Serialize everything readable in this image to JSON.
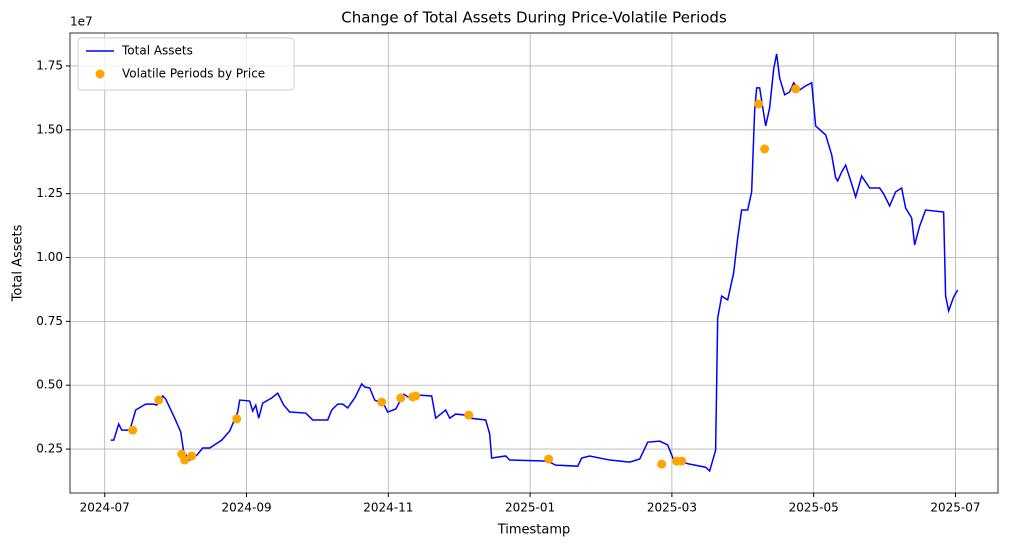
{
  "chart_data": {
    "type": "line",
    "title": "Change of Total Assets During Price-Volatile Periods",
    "x_label": "Timestamp",
    "y_label": "Total Assets",
    "y_offset_label": "1e7",
    "grid": true,
    "legend": "upper left",
    "xlim": [
      -0.49,
      12.6
    ],
    "xticks": [
      {
        "value": 0,
        "label": "2024-07"
      },
      {
        "value": 2,
        "label": "2024-09"
      },
      {
        "value": 4,
        "label": "2024-11"
      },
      {
        "value": 6,
        "label": "2025-01"
      },
      {
        "value": 8,
        "label": "2025-03"
      },
      {
        "value": 10,
        "label": "2025-05"
      },
      {
        "value": 12,
        "label": "2025-07"
      }
    ],
    "ylim": [
      0.078,
      1.879
    ],
    "yticks": [
      0.25,
      {
        "value": 0.5,
        "label": "0.50"
      },
      0.75,
      {
        "value": 1.0,
        "label": "1.00"
      },
      1.25,
      {
        "value": 1.5,
        "label": "1.50"
      },
      1.75
    ],
    "series": [
      {
        "name": "Total Assets",
        "type": "line",
        "color": "#0000ff",
        "x": [
          0.085,
          0.127,
          0.197,
          0.24,
          0.353,
          0.437,
          0.578,
          0.691,
          0.733,
          0.818,
          0.86,
          0.987,
          1.072,
          1.114,
          1.199,
          1.298,
          1.382,
          1.481,
          1.65,
          1.763,
          1.876,
          1.904,
          2.045,
          2.087,
          2.13,
          2.172,
          2.228,
          2.355,
          2.44,
          2.525,
          2.609,
          2.835,
          2.934,
          3.145,
          3.202,
          3.286,
          3.357,
          3.427,
          3.526,
          3.625,
          3.667,
          3.738,
          3.808,
          3.935,
          3.992,
          4.105,
          4.217,
          4.302,
          4.372,
          4.612,
          4.668,
          4.809,
          4.866,
          4.951,
          5.092,
          5.148,
          5.374,
          5.43,
          5.458,
          5.656,
          5.712,
          6.248,
          6.361,
          6.671,
          6.728,
          6.84,
          7.123,
          7.405,
          7.546,
          7.659,
          7.828,
          7.941,
          8.025,
          8.251,
          8.476,
          8.533,
          8.617,
          8.646,
          8.702,
          8.787,
          8.871,
          8.928,
          8.984,
          9.069,
          9.125,
          9.168,
          9.196,
          9.238,
          9.323,
          9.379,
          9.436,
          9.478,
          9.52,
          9.591,
          9.661,
          9.718,
          9.802,
          9.887,
          9.972,
          10.028,
          10.169,
          10.254,
          10.31,
          10.338,
          10.395,
          10.451,
          10.536,
          10.592,
          10.677,
          10.79,
          10.931,
          10.987,
          11.072,
          11.156,
          11.241,
          11.297,
          11.382,
          11.424,
          11.495,
          11.579,
          11.833,
          11.861,
          11.904,
          11.974,
          12.031
        ],
        "values": [
          0.285,
          0.285,
          0.348,
          0.324,
          0.324,
          0.403,
          0.426,
          0.426,
          0.422,
          0.458,
          0.446,
          0.371,
          0.317,
          0.238,
          0.207,
          0.226,
          0.254,
          0.254,
          0.285,
          0.321,
          0.395,
          0.442,
          0.438,
          0.399,
          0.422,
          0.371,
          0.43,
          0.45,
          0.469,
          0.422,
          0.395,
          0.391,
          0.364,
          0.364,
          0.403,
          0.426,
          0.426,
          0.411,
          0.45,
          0.505,
          0.493,
          0.489,
          0.442,
          0.426,
          0.395,
          0.407,
          0.465,
          0.45,
          0.462,
          0.458,
          0.371,
          0.403,
          0.371,
          0.387,
          0.383,
          0.371,
          0.364,
          0.309,
          0.215,
          0.223,
          0.207,
          0.203,
          0.187,
          0.183,
          0.215,
          0.223,
          0.207,
          0.199,
          0.211,
          0.277,
          0.281,
          0.266,
          0.207,
          0.191,
          0.179,
          0.164,
          0.246,
          0.763,
          0.849,
          0.834,
          0.939,
          1.076,
          1.186,
          1.186,
          1.257,
          1.578,
          1.664,
          1.664,
          1.515,
          1.586,
          1.739,
          1.797,
          1.703,
          1.637,
          1.648,
          1.684,
          1.656,
          1.672,
          1.684,
          1.515,
          1.48,
          1.402,
          1.312,
          1.3,
          1.335,
          1.362,
          1.288,
          1.237,
          1.319,
          1.272,
          1.272,
          1.249,
          1.202,
          1.257,
          1.272,
          1.194,
          1.155,
          1.049,
          1.123,
          1.186,
          1.178,
          0.849,
          0.791,
          0.845,
          0.873
        ]
      },
      {
        "name": "Volatile Periods by Price",
        "type": "scatter",
        "color": "#ffa500",
        "x": [
          0.395,
          0.762,
          1.086,
          1.128,
          1.227,
          1.862,
          3.907,
          4.175,
          4.344,
          4.386,
          5.134,
          6.262,
          7.856,
          8.067,
          8.138,
          9.224,
          9.308,
          9.746
        ],
        "values": [
          0.324,
          0.442,
          0.23,
          0.207,
          0.223,
          0.368,
          0.434,
          0.45,
          0.454,
          0.458,
          0.383,
          0.211,
          0.191,
          0.203,
          0.203,
          1.601,
          1.425,
          1.66
        ]
      }
    ]
  }
}
